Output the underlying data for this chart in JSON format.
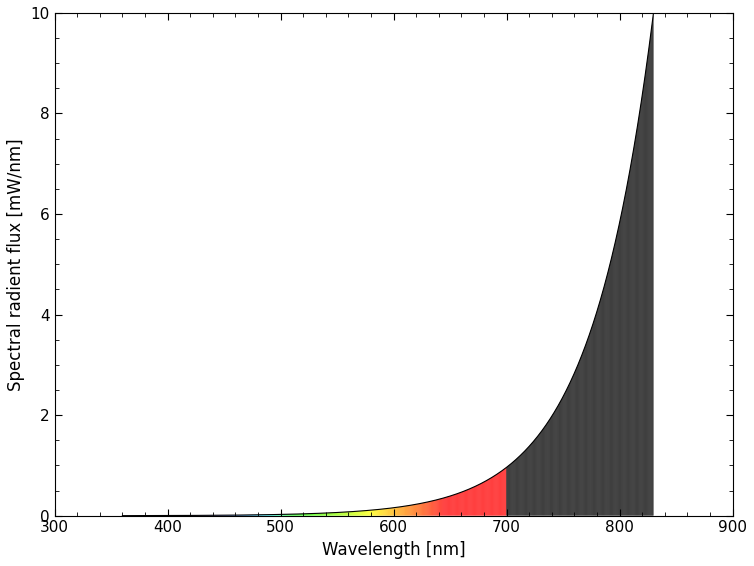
{
  "title": "",
  "xlabel": "Wavelength [nm]",
  "ylabel": "Spectral radient flux [mW/nm]",
  "xlim": [
    300,
    900
  ],
  "ylim": [
    0,
    10
  ],
  "xticks": [
    300,
    400,
    500,
    600,
    700,
    800,
    900
  ],
  "yticks": [
    0,
    2,
    4,
    6,
    8,
    10
  ],
  "wl_start": 360,
  "wl_end": 830,
  "background_color": "#ffffff",
  "figsize": [
    7.54,
    5.66
  ],
  "dpi": 100
}
